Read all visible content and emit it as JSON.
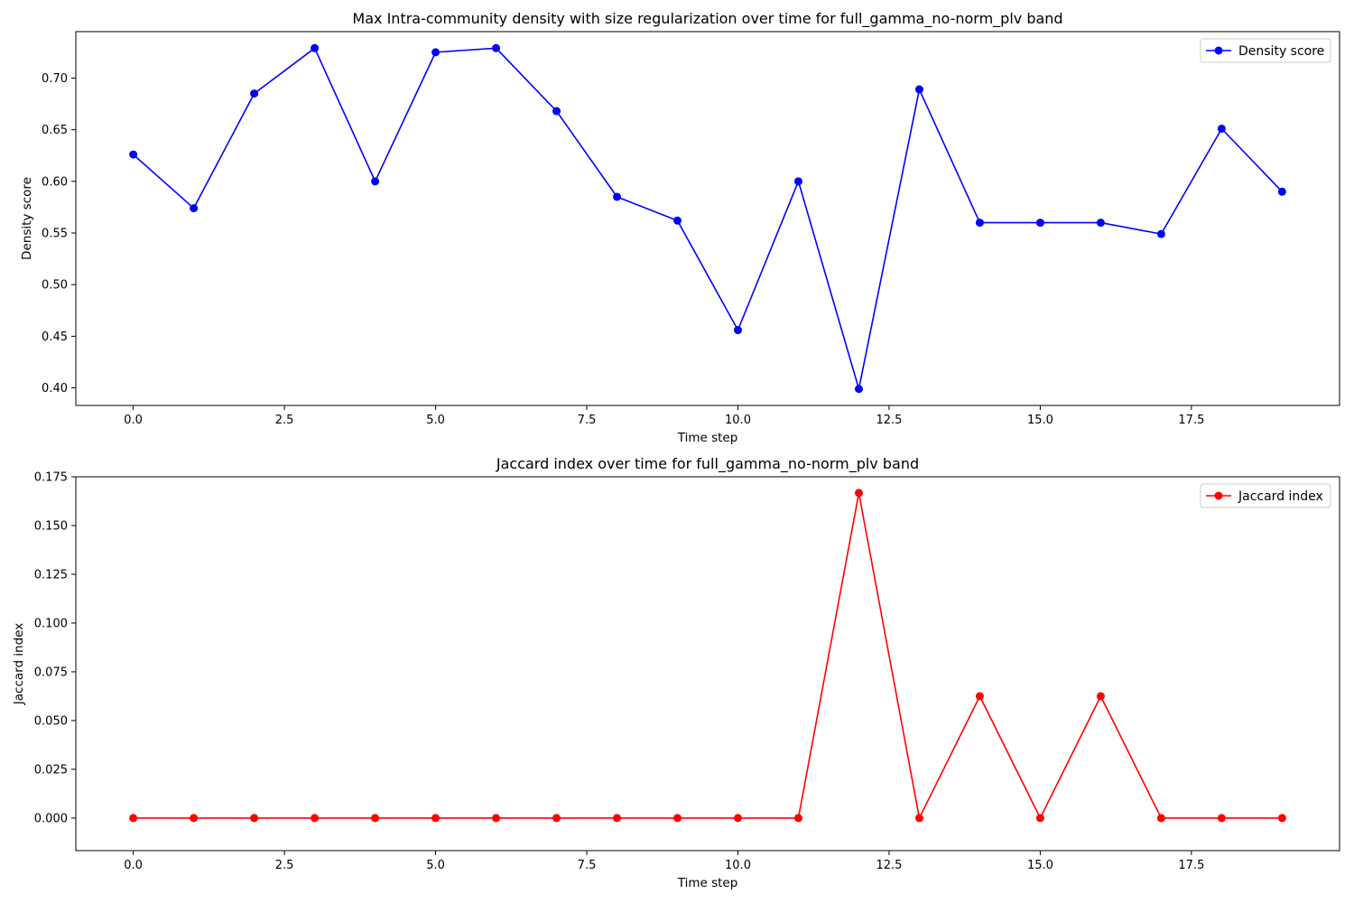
{
  "chart_data": [
    {
      "type": "line",
      "title": "Max Intra-community density with size regularization over time for full_gamma_no-norm_plv band",
      "xlabel": "Time step",
      "ylabel": "Density score",
      "xlim": [
        -0.95,
        19.95
      ],
      "ylim": [
        0.383,
        0.745
      ],
      "x_ticks": [
        0.0,
        2.5,
        5.0,
        7.5,
        10.0,
        12.5,
        15.0,
        17.5
      ],
      "x_tick_labels": [
        "0.0",
        "2.5",
        "5.0",
        "7.5",
        "10.0",
        "12.5",
        "15.0",
        "17.5"
      ],
      "y_ticks": [
        0.4,
        0.45,
        0.5,
        0.55,
        0.6,
        0.65,
        0.7
      ],
      "y_tick_labels": [
        "0.40",
        "0.45",
        "0.50",
        "0.55",
        "0.60",
        "0.65",
        "0.70"
      ],
      "grid": false,
      "legend_position": "top-right",
      "series": [
        {
          "name": "Density score",
          "color": "#0000ff",
          "marker": "circle",
          "x": [
            0,
            1,
            2,
            3,
            4,
            5,
            6,
            7,
            8,
            9,
            10,
            11,
            12,
            13,
            14,
            15,
            16,
            17,
            18,
            19
          ],
          "values": [
            0.626,
            0.574,
            0.685,
            0.729,
            0.6,
            0.725,
            0.729,
            0.668,
            0.585,
            0.562,
            0.456,
            0.6,
            0.399,
            0.689,
            0.56,
            0.56,
            0.56,
            0.549,
            0.651,
            0.59
          ]
        }
      ]
    },
    {
      "type": "line",
      "title": "Jaccard index over time for full_gamma_no-norm_plv band",
      "xlabel": "Time step",
      "ylabel": "Jaccard index",
      "xlim": [
        -0.95,
        19.95
      ],
      "ylim": [
        -0.0167,
        0.175
      ],
      "x_ticks": [
        0.0,
        2.5,
        5.0,
        7.5,
        10.0,
        12.5,
        15.0,
        17.5
      ],
      "x_tick_labels": [
        "0.0",
        "2.5",
        "5.0",
        "7.5",
        "10.0",
        "12.5",
        "15.0",
        "17.5"
      ],
      "y_ticks": [
        0.0,
        0.025,
        0.05,
        0.075,
        0.1,
        0.125,
        0.15,
        0.175
      ],
      "y_tick_labels": [
        "0.000",
        "0.025",
        "0.050",
        "0.075",
        "0.100",
        "0.125",
        "0.150",
        "0.175"
      ],
      "grid": false,
      "legend_position": "top-right",
      "series": [
        {
          "name": "Jaccard index",
          "color": "#ff0000",
          "marker": "circle",
          "x": [
            0,
            1,
            2,
            3,
            4,
            5,
            6,
            7,
            8,
            9,
            10,
            11,
            12,
            13,
            14,
            15,
            16,
            17,
            18,
            19
          ],
          "values": [
            0,
            0,
            0,
            0,
            0,
            0,
            0,
            0,
            0,
            0,
            0,
            0,
            0.1667,
            0,
            0.0625,
            0,
            0.0625,
            0,
            0,
            0
          ]
        }
      ]
    }
  ]
}
